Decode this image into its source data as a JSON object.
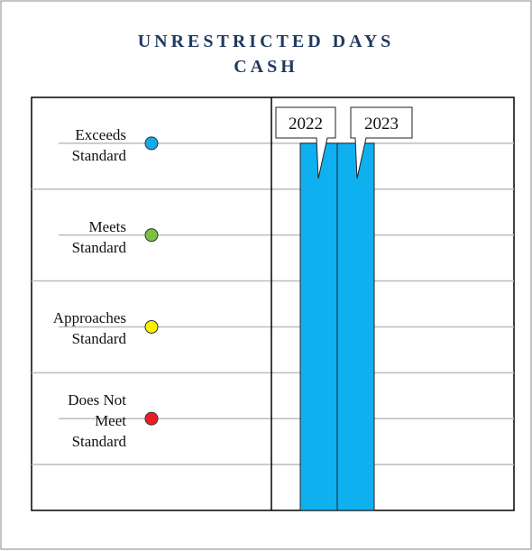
{
  "chart_data": {
    "type": "bar",
    "title": "UNRESTRICTED DAYS CASH",
    "categories": [
      "2022",
      "2023"
    ],
    "values": [
      4,
      4
    ],
    "color": "#0fb0ef",
    "ylim": [
      0,
      4.5
    ],
    "yticks": [
      {
        "value": 4,
        "label": "Exceeds\nStandard"
      },
      {
        "value": 3,
        "label": "Meets\nStandard"
      },
      {
        "value": 2,
        "label": "Approaches\nStandard"
      },
      {
        "value": 1,
        "label": "Does Not\nMeet\nStandard"
      }
    ],
    "level_colors": [
      "#13a9ea",
      "#7ac143",
      "#fff200",
      "#ed1c24"
    ],
    "minor_yticks": [
      3.5,
      2.5,
      1.5,
      0.5
    ],
    "grid": true
  }
}
